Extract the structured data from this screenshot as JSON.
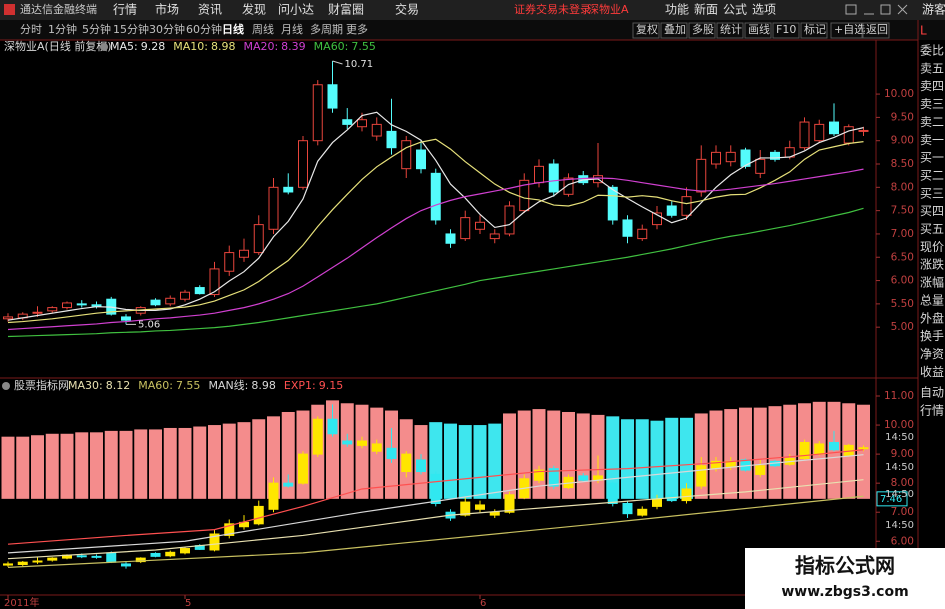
{
  "app": {
    "title": "通达信金融终端",
    "menu": [
      "行情",
      "市场",
      "资讯",
      "发现",
      "问小达",
      "财富圈",
      "交易"
    ],
    "status": [
      "证券交易未登录",
      "深物业A"
    ],
    "right_menu": [
      "功能",
      "新面",
      "公式",
      "选项"
    ],
    "user": "游客"
  },
  "toolbar": {
    "periods": [
      "分时",
      "1分钟",
      "5分钟",
      "15分钟",
      "30分钟",
      "60分钟",
      "日线",
      "周线",
      "月线",
      "多周期",
      "更多"
    ],
    "tools": [
      "复权",
      "叠加",
      "多股",
      "统计",
      "画线",
      "F10",
      "标记",
      "+自选",
      "返回"
    ]
  },
  "side_panel": [
    "L",
    "委比",
    "卖五",
    "卖四",
    "卖三",
    "卖二",
    "卖一",
    "买一",
    "买二",
    "买三",
    "买四",
    "买五",
    "现价",
    "涨跌",
    "涨幅",
    "总量",
    "外盘",
    "换手",
    "净资",
    "收益",
    "自动",
    "行情"
  ],
  "watermark": {
    "title": "指标公式网",
    "url": "www.zbgs3.com"
  },
  "chart_data": [
    {
      "type": "candlestick",
      "title": "深物业A(日线 前复权)",
      "categories": [
        "2011年",
        null,
        null,
        null,
        null,
        null,
        null,
        null,
        null,
        null,
        null,
        null,
        "5",
        null,
        null,
        null,
        null,
        null,
        null,
        null,
        null,
        null,
        null,
        null,
        null,
        null,
        null,
        null,
        null,
        null,
        null,
        null,
        "6",
        null,
        null,
        null,
        null,
        null,
        null,
        null,
        null,
        null,
        null,
        null,
        null,
        null,
        null,
        null,
        null,
        null,
        null,
        null,
        null,
        null,
        null,
        null,
        null,
        null,
        null
      ],
      "open": [
        5.18,
        5.2,
        5.3,
        5.35,
        5.42,
        5.5,
        5.48,
        5.6,
        5.22,
        5.3,
        5.58,
        5.5,
        5.6,
        5.85,
        5.7,
        6.2,
        6.5,
        6.6,
        7.1,
        8.0,
        8.0,
        9.0,
        10.2,
        9.45,
        9.3,
        9.1,
        9.2,
        8.4,
        8.8,
        8.3,
        7.0,
        6.9,
        7.1,
        6.9,
        7.0,
        7.5,
        8.1,
        8.5,
        7.85,
        8.25,
        8.1,
        8.0,
        7.3,
        6.9,
        7.2,
        7.6,
        7.4,
        7.9,
        8.5,
        8.55,
        8.8,
        8.3,
        8.75,
        8.65,
        8.85,
        9.0,
        9.4,
        8.95,
        9.2
      ],
      "high": [
        5.3,
        5.32,
        5.45,
        5.45,
        5.55,
        5.58,
        5.55,
        5.65,
        5.28,
        5.45,
        5.62,
        5.68,
        5.8,
        5.9,
        6.4,
        6.75,
        6.9,
        7.4,
        8.2,
        8.3,
        9.1,
        10.3,
        10.71,
        9.7,
        9.6,
        9.5,
        9.9,
        9.1,
        9.0,
        8.4,
        7.1,
        7.5,
        7.4,
        7.1,
        7.7,
        8.3,
        8.6,
        8.6,
        8.3,
        8.35,
        8.95,
        8.05,
        7.4,
        7.2,
        7.6,
        7.7,
        8.0,
        8.9,
        8.9,
        8.9,
        8.85,
        8.8,
        8.8,
        9.0,
        9.5,
        9.45,
        9.8,
        9.35,
        9.3
      ],
      "low": [
        5.12,
        5.15,
        5.22,
        5.3,
        5.38,
        5.42,
        5.4,
        5.25,
        5.06,
        5.25,
        5.45,
        5.45,
        5.55,
        5.7,
        5.65,
        6.1,
        6.4,
        6.55,
        7.0,
        7.85,
        7.95,
        8.9,
        9.6,
        9.25,
        9.2,
        9.0,
        8.7,
        8.2,
        8.3,
        7.2,
        6.7,
        6.85,
        7.0,
        6.8,
        6.95,
        7.45,
        8.0,
        7.8,
        7.8,
        8.05,
        8.0,
        7.2,
        6.8,
        6.85,
        7.1,
        7.35,
        7.3,
        7.8,
        8.4,
        8.45,
        8.4,
        8.2,
        8.55,
        8.6,
        8.8,
        8.95,
        9.1,
        8.9,
        9.1
      ],
      "close": [
        5.22,
        5.28,
        5.32,
        5.42,
        5.52,
        5.48,
        5.45,
        5.28,
        5.15,
        5.42,
        5.48,
        5.62,
        5.75,
        5.72,
        6.25,
        6.6,
        6.65,
        7.2,
        8.0,
        7.9,
        9.0,
        10.2,
        9.7,
        9.35,
        9.45,
        9.35,
        8.85,
        9.0,
        8.4,
        7.3,
        6.8,
        7.35,
        7.25,
        7.0,
        7.6,
        8.15,
        8.45,
        7.9,
        8.2,
        8.1,
        8.25,
        7.3,
        6.95,
        7.1,
        7.45,
        7.4,
        7.8,
        8.6,
        8.75,
        8.75,
        8.45,
        8.6,
        8.6,
        8.85,
        9.4,
        9.35,
        9.15,
        9.3,
        9.22
      ],
      "up_color": "#e8453c",
      "down_color": "#54fcfc",
      "series": [
        {
          "name": "MA5:",
          "color": "#e8e8e8",
          "values": [
            5.15,
            5.2,
            5.25,
            5.3,
            5.35,
            5.4,
            5.44,
            5.43,
            5.38,
            5.36,
            5.36,
            5.39,
            5.48,
            5.6,
            5.76,
            5.99,
            6.19,
            6.48,
            6.94,
            7.27,
            7.75,
            8.56,
            8.96,
            9.23,
            9.54,
            9.61,
            9.34,
            9.2,
            9.01,
            8.58,
            8.07,
            7.77,
            7.42,
            7.14,
            7.2,
            7.47,
            7.69,
            7.82,
            8.06,
            8.16,
            8.18,
            7.95,
            7.76,
            7.58,
            7.41,
            7.24,
            7.34,
            7.67,
            8.0,
            8.27,
            8.47,
            8.63,
            8.63,
            8.65,
            8.78,
            8.96,
            9.07,
            9.21,
            9.28
          ]
        },
        {
          "name": "MA10:",
          "color": "#e6e07a",
          "values": [
            5.1,
            5.12,
            5.15,
            5.18,
            5.22,
            5.26,
            5.3,
            5.33,
            5.35,
            5.37,
            5.39,
            5.41,
            5.43,
            5.48,
            5.56,
            5.68,
            5.8,
            5.98,
            6.21,
            6.43,
            6.76,
            7.16,
            7.52,
            7.85,
            8.17,
            8.44,
            8.65,
            8.85,
            8.97,
            9.03,
            8.82,
            8.55,
            8.31,
            8.07,
            7.89,
            7.77,
            7.73,
            7.62,
            7.6,
            7.68,
            7.83,
            7.82,
            7.79,
            7.82,
            7.79,
            7.71,
            7.65,
            7.71,
            7.79,
            7.84,
            7.85,
            7.99,
            8.15,
            8.33,
            8.6,
            8.8,
            8.87,
            8.94,
            8.98
          ]
        },
        {
          "name": "MA20:",
          "color": "#d040d0",
          "values": [
            4.95,
            4.97,
            4.99,
            5.01,
            5.03,
            5.05,
            5.07,
            5.1,
            5.12,
            5.15,
            5.18,
            5.2,
            5.23,
            5.26,
            5.3,
            5.36,
            5.42,
            5.5,
            5.6,
            5.72,
            5.88,
            6.08,
            6.28,
            6.48,
            6.7,
            6.92,
            7.13,
            7.33,
            7.5,
            7.62,
            7.72,
            7.8,
            7.86,
            7.92,
            7.98,
            8.05,
            8.1,
            8.14,
            8.17,
            8.19,
            8.2,
            8.19,
            8.15,
            8.1,
            8.05,
            8.0,
            7.95,
            7.92,
            7.93,
            7.96,
            8.0,
            8.04,
            8.08,
            8.13,
            8.18,
            8.23,
            8.28,
            8.33,
            8.39
          ]
        },
        {
          "name": "MA60:",
          "color": "#40c040",
          "values": [
            4.8,
            4.81,
            4.82,
            4.83,
            4.84,
            4.85,
            4.86,
            4.88,
            4.89,
            4.9,
            4.92,
            4.93,
            4.95,
            4.97,
            4.99,
            5.02,
            5.06,
            5.1,
            5.15,
            5.2,
            5.25,
            5.3,
            5.35,
            5.4,
            5.45,
            5.5,
            5.57,
            5.64,
            5.71,
            5.78,
            5.85,
            5.92,
            6.0,
            6.05,
            6.1,
            6.15,
            6.2,
            6.25,
            6.3,
            6.35,
            6.4,
            6.45,
            6.5,
            6.56,
            6.62,
            6.68,
            6.75,
            6.82,
            6.89,
            6.95,
            7.0,
            7.06,
            7.12,
            7.18,
            7.25,
            7.32,
            7.39,
            7.46,
            7.55
          ]
        }
      ],
      "annotations": [
        10.71,
        5.06
      ],
      "ylim": [
        3.91,
        11.16
      ],
      "yticks": [
        {
          "value": 5,
          "label": "5.00"
        },
        {
          "value": 5.5,
          "label": "5.50"
        },
        {
          "value": 6,
          "label": "6.00"
        },
        {
          "value": 6.5,
          "label": "6.50"
        },
        {
          "value": 7,
          "label": "7.00"
        },
        {
          "value": 7.5,
          "label": "7.50"
        },
        {
          "value": 8,
          "label": "8.00"
        },
        {
          "value": 8.5,
          "label": "8.50"
        },
        {
          "value": 9,
          "label": "9.00"
        },
        {
          "value": 9.5,
          "label": "9.50"
        },
        {
          "value": 10,
          "label": "10.00"
        }
      ]
    },
    {
      "type": "bar",
      "title": "股票指标网",
      "base": 7.46,
      "values": [
        9.6,
        9.6,
        9.65,
        9.7,
        9.7,
        9.75,
        9.75,
        9.8,
        9.8,
        9.85,
        9.85,
        9.9,
        9.9,
        9.95,
        10.0,
        10.05,
        10.1,
        10.2,
        10.3,
        10.45,
        10.5,
        10.7,
        10.85,
        10.75,
        10.7,
        10.6,
        10.5,
        10.2,
        10.0,
        10.1,
        10.05,
        10.0,
        10.0,
        10.05,
        10.4,
        10.5,
        10.55,
        10.5,
        10.45,
        10.4,
        10.35,
        10.3,
        10.2,
        10.2,
        10.15,
        10.25,
        10.25,
        10.4,
        10.5,
        10.55,
        10.6,
        10.6,
        10.65,
        10.7,
        10.75,
        10.8,
        10.8,
        10.75,
        10.7
      ],
      "colors": [
        "#f48c8c",
        "#f48c8c",
        "#f48c8c",
        "#f48c8c",
        "#f48c8c",
        "#f48c8c",
        "#f48c8c",
        "#f48c8c",
        "#f48c8c",
        "#f48c8c",
        "#f48c8c",
        "#f48c8c",
        "#f48c8c",
        "#f48c8c",
        "#f48c8c",
        "#f48c8c",
        "#f48c8c",
        "#f48c8c",
        "#f48c8c",
        "#f48c8c",
        "#f48c8c",
        "#f48c8c",
        "#f48c8c",
        "#f48c8c",
        "#f48c8c",
        "#f48c8c",
        "#f48c8c",
        "#f48c8c",
        "#f48c8c",
        "#3ee6ee",
        "#3ee6ee",
        "#3ee6ee",
        "#3ee6ee",
        "#3ee6ee",
        "#f48c8c",
        "#f48c8c",
        "#f48c8c",
        "#f48c8c",
        "#f48c8c",
        "#f48c8c",
        "#f48c8c",
        "#3ee6ee",
        "#3ee6ee",
        "#3ee6ee",
        "#3ee6ee",
        "#3ee6ee",
        "#3ee6ee",
        "#f48c8c",
        "#f48c8c",
        "#f48c8c",
        "#f48c8c",
        "#f48c8c",
        "#f48c8c",
        "#f48c8c",
        "#f48c8c",
        "#f48c8c",
        "#f48c8c",
        "#f48c8c",
        "#f48c8c"
      ],
      "up_color": "#ffe600",
      "down_color": "#30e8f0",
      "series": [
        {
          "name": "MA30:",
          "color": "#e8e0b0",
          "x": [
            0,
            10,
            20,
            30,
            40,
            50,
            58
          ],
          "values": [
            5.4,
            5.7,
            6.2,
            6.9,
            7.3,
            7.7,
            8.12
          ]
        },
        {
          "name": "MA60:",
          "color": "#c8c060",
          "x": [
            0,
            20,
            40,
            58
          ],
          "values": [
            5.1,
            5.6,
            6.6,
            7.55
          ]
        },
        {
          "name": "MAN线:",
          "color": "#d8d8d8",
          "x": [
            0,
            12,
            24,
            36,
            48,
            58
          ],
          "values": [
            5.6,
            6.0,
            7.0,
            7.9,
            8.5,
            8.98
          ]
        },
        {
          "name": "EXP1:",
          "color": "#ff5050",
          "x": [
            0,
            8,
            14,
            20,
            24,
            30,
            36,
            42,
            48,
            54,
            58
          ],
          "values": [
            5.9,
            6.2,
            6.4,
            7.2,
            7.8,
            8.1,
            8.4,
            8.5,
            8.7,
            8.95,
            9.15
          ]
        }
      ],
      "time_labels": [
        "14:50",
        "14:50",
        "14:50",
        "14:50",
        "14:50"
      ],
      "ylim": [
        4.15,
        11.62
      ],
      "yticks": [
        {
          "value": 6,
          "label": "6.00"
        },
        {
          "value": 7,
          "label": "7.00"
        },
        {
          "value": 8,
          "label": "8.00"
        },
        {
          "value": 9,
          "label": "9.00"
        },
        {
          "value": 10,
          "label": "10.00"
        },
        {
          "value": 11,
          "label": "11.00"
        }
      ]
    }
  ]
}
